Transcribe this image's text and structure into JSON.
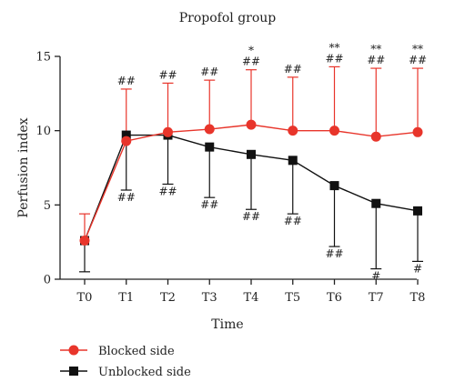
{
  "colors": {
    "blocked": "#e8352b",
    "unblocked": "#111111",
    "axis": "#222222"
  },
  "chart_data": {
    "type": "line",
    "title": "Propofol group",
    "xlabel": "Time",
    "ylabel": "Perfusion index",
    "categories": [
      "T0",
      "T1",
      "T2",
      "T3",
      "T4",
      "T5",
      "T6",
      "T7",
      "T8"
    ],
    "ylim": [
      0,
      15
    ],
    "yticks": [
      0,
      5,
      10,
      15
    ],
    "grid": false,
    "legend_position": "bottom-left",
    "series": [
      {
        "name": "Blocked side",
        "color": "#e8352b",
        "marker": "circle",
        "values": [
          2.6,
          9.3,
          9.9,
          10.1,
          10.4,
          10.0,
          10.0,
          9.6,
          9.9
        ],
        "error_up": [
          1.8,
          3.5,
          3.3,
          3.3,
          3.7,
          3.6,
          4.3,
          4.6,
          4.3
        ]
      },
      {
        "name": "Unblocked side",
        "color": "#111111",
        "marker": "square",
        "values": [
          2.6,
          9.7,
          9.7,
          8.9,
          8.4,
          8.0,
          6.3,
          5.1,
          4.6
        ],
        "error_down": [
          2.1,
          3.7,
          3.3,
          3.4,
          3.7,
          3.6,
          4.1,
          4.4,
          3.4
        ]
      }
    ],
    "annotations": {
      "blocked_above": [
        {
          "index": 1,
          "lines": [
            "##"
          ]
        },
        {
          "index": 2,
          "lines": [
            "##"
          ]
        },
        {
          "index": 3,
          "lines": [
            "##"
          ]
        },
        {
          "index": 4,
          "lines": [
            "*",
            "##"
          ]
        },
        {
          "index": 5,
          "lines": [
            "##"
          ]
        },
        {
          "index": 6,
          "lines": [
            "**",
            "##"
          ]
        },
        {
          "index": 7,
          "lines": [
            "**",
            "##"
          ]
        },
        {
          "index": 8,
          "lines": [
            "**",
            "##"
          ]
        }
      ],
      "unblocked_below": [
        {
          "index": 1,
          "text": "##"
        },
        {
          "index": 2,
          "text": "##"
        },
        {
          "index": 3,
          "text": "##"
        },
        {
          "index": 4,
          "text": "##"
        },
        {
          "index": 5,
          "text": "##"
        },
        {
          "index": 6,
          "text": "##"
        },
        {
          "index": 7,
          "text": "#"
        },
        {
          "index": 8,
          "text": "#"
        }
      ]
    }
  }
}
